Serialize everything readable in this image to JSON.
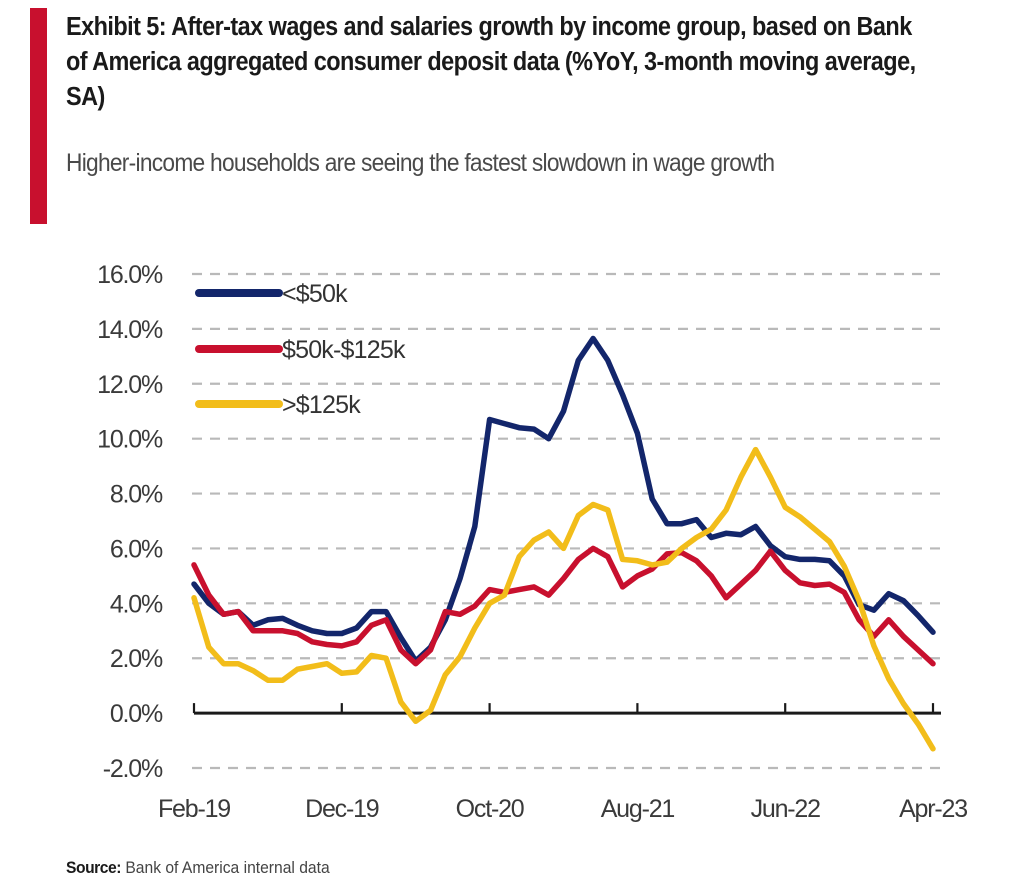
{
  "header": {
    "accent_color": "#c8102e",
    "title": "Exhibit 5: After-tax wages and salaries growth by income group, based on Bank  of America aggregated consumer deposit data (%YoY, 3-month moving average, SA)",
    "subtitle": "Higher-income households are seeing the fastest slowdown in wage growth"
  },
  "footer": {
    "source_label": "Source:",
    "source_text": "Bank of America internal data"
  },
  "chart_data": {
    "type": "line",
    "title": "Exhibit 5: After-tax wages and salaries growth by income group, based on Bank of America aggregated consumer deposit data (%YoY, 3-month moving average, SA)",
    "subtitle": "Higher-income households are seeing the fastest slowdown in wage growth",
    "xlabel": "",
    "ylabel": "",
    "x_start": "Feb-19",
    "x_end": "Apr-23",
    "x_frequency": "monthly",
    "x_tick_labels": [
      "Feb-19",
      "Dec-19",
      "Oct-20",
      "Aug-21",
      "Jun-22",
      "Apr-23"
    ],
    "x_tick_month_index": [
      0,
      10,
      20,
      30,
      40,
      50
    ],
    "ylim": [
      -2,
      16
    ],
    "y_ticks": [
      16,
      14,
      12,
      10,
      8,
      6,
      4,
      2,
      0,
      -2
    ],
    "y_tick_labels": [
      "16.0%",
      "14.0%",
      "12.0%",
      "10.0%",
      "8.0%",
      "6.0%",
      "4.0%",
      "2.0%",
      "0.0%",
      "-2.0%"
    ],
    "grid": "horizontal dashed",
    "legend_position": "top-left",
    "series": [
      {
        "name": "<$50k",
        "color": "#13266b",
        "values": [
          4.7,
          4.0,
          3.6,
          3.7,
          3.2,
          3.4,
          3.45,
          3.2,
          3.0,
          2.9,
          2.9,
          3.1,
          3.7,
          3.7,
          2.75,
          1.9,
          2.4,
          3.4,
          4.9,
          6.8,
          10.7,
          10.55,
          10.4,
          10.35,
          10.0,
          11.0,
          12.85,
          13.65,
          12.85,
          11.6,
          10.2,
          7.8,
          6.9,
          6.9,
          7.05,
          6.4,
          6.55,
          6.5,
          6.8,
          6.1,
          5.7,
          5.6,
          5.6,
          5.55,
          5.0,
          3.95,
          3.75,
          4.35,
          4.1,
          3.55,
          2.95
        ]
      },
      {
        "name": "$50k-$125k",
        "color": "#c8102e",
        "values": [
          5.4,
          4.3,
          3.6,
          3.7,
          3.0,
          3.0,
          3.0,
          2.9,
          2.6,
          2.5,
          2.45,
          2.6,
          3.2,
          3.4,
          2.3,
          1.8,
          2.3,
          3.7,
          3.6,
          3.9,
          4.5,
          4.4,
          4.5,
          4.6,
          4.3,
          4.9,
          5.6,
          6.0,
          5.7,
          4.6,
          5.0,
          5.25,
          5.8,
          5.85,
          5.55,
          5.0,
          4.2,
          4.7,
          5.2,
          5.9,
          5.2,
          4.75,
          4.65,
          4.7,
          4.4,
          3.4,
          2.8,
          3.4,
          2.8,
          2.3,
          1.8
        ]
      },
      {
        "name": ">$125k",
        "color": "#f2bd1a",
        "values": [
          4.2,
          2.4,
          1.8,
          1.8,
          1.55,
          1.2,
          1.2,
          1.6,
          1.7,
          1.8,
          1.45,
          1.5,
          2.1,
          2.0,
          0.4,
          -0.3,
          0.1,
          1.4,
          2.05,
          3.1,
          4.0,
          4.3,
          5.7,
          6.3,
          6.6,
          6.0,
          7.2,
          7.6,
          7.4,
          5.6,
          5.55,
          5.4,
          5.5,
          6.0,
          6.4,
          6.7,
          7.4,
          8.6,
          9.6,
          8.6,
          7.5,
          7.15,
          6.7,
          6.25,
          5.35,
          4.1,
          2.45,
          1.25,
          0.35,
          -0.4,
          -1.3
        ]
      }
    ]
  }
}
